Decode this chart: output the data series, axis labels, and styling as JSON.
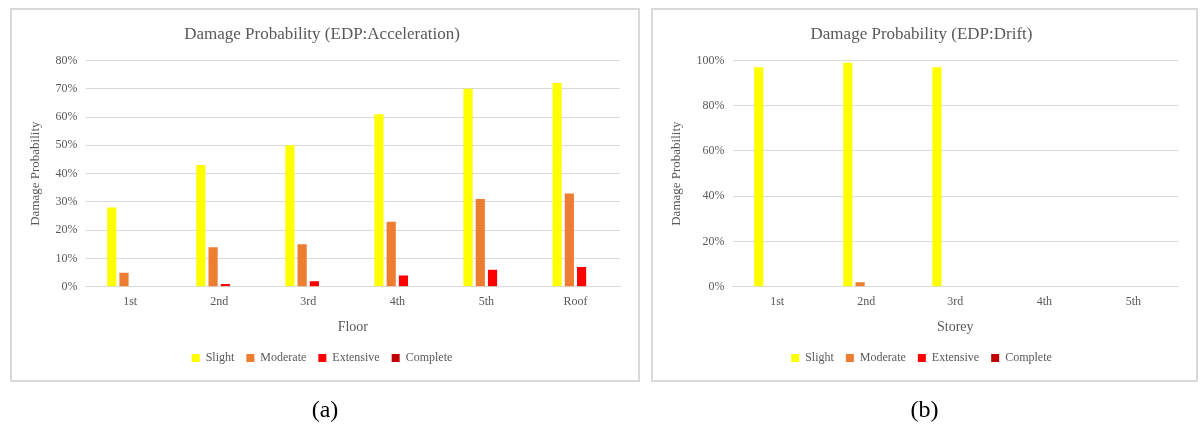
{
  "chart_data": [
    {
      "type": "bar",
      "title": "Damage Probability (EDP:Acceleration)",
      "xlabel": "Floor",
      "ylabel": "Damage Probability",
      "categories": [
        "1st",
        "2nd",
        "3rd",
        "4th",
        "5th",
        "Roof"
      ],
      "series": [
        {
          "name": "Slight",
          "color": "#ffff00",
          "values": [
            28,
            43,
            50,
            61,
            70,
            72
          ]
        },
        {
          "name": "Moderate",
          "color": "#ed7d31",
          "values": [
            5,
            14,
            15,
            23,
            31,
            33
          ]
        },
        {
          "name": "Extensive",
          "color": "#ff0000",
          "values": [
            0,
            1,
            2,
            4,
            6,
            7
          ]
        },
        {
          "name": "Complete",
          "color": "#c00000",
          "values": [
            0,
            0,
            0,
            0,
            0,
            0
          ]
        }
      ],
      "ylim": [
        0,
        80
      ],
      "yticks": [
        {
          "value": 0,
          "label": "0%"
        },
        {
          "value": 10,
          "label": "10%"
        },
        {
          "value": 20,
          "label": "20%"
        },
        {
          "value": 30,
          "label": "30%"
        },
        {
          "value": 40,
          "label": "40%"
        },
        {
          "value": 50,
          "label": "50%"
        },
        {
          "value": 60,
          "label": "60%"
        },
        {
          "value": 70,
          "label": "70%"
        },
        {
          "value": 80,
          "label": "80%"
        }
      ],
      "grid": "y",
      "legend": "bottom",
      "annotations": [
        "(a)"
      ]
    },
    {
      "type": "bar",
      "title": "Damage Probability (EDP:Drift)",
      "xlabel": "Storey",
      "ylabel": "Damage Probability",
      "categories": [
        "1st",
        "2nd",
        "3rd",
        "4th",
        "5th"
      ],
      "series": [
        {
          "name": "Slight",
          "color": "#ffff00",
          "values": [
            97,
            99,
            97,
            0,
            0
          ]
        },
        {
          "name": "Moderate",
          "color": "#ed7d31",
          "values": [
            0,
            2,
            0,
            0,
            0
          ]
        },
        {
          "name": "Extensive",
          "color": "#ff0000",
          "values": [
            0,
            0,
            0,
            0,
            0
          ]
        },
        {
          "name": "Complete",
          "color": "#c00000",
          "values": [
            0,
            0,
            0,
            0,
            0
          ]
        }
      ],
      "ylim": [
        0,
        100
      ],
      "yticks": [
        {
          "value": 0,
          "label": "0%"
        },
        {
          "value": 20,
          "label": "20%"
        },
        {
          "value": 40,
          "label": "40%"
        },
        {
          "value": 60,
          "label": "60%"
        },
        {
          "value": 80,
          "label": "80%"
        },
        {
          "value": 100,
          "label": "100%"
        }
      ],
      "grid": "y",
      "legend": "bottom",
      "annotations": [
        "(b)"
      ]
    }
  ]
}
